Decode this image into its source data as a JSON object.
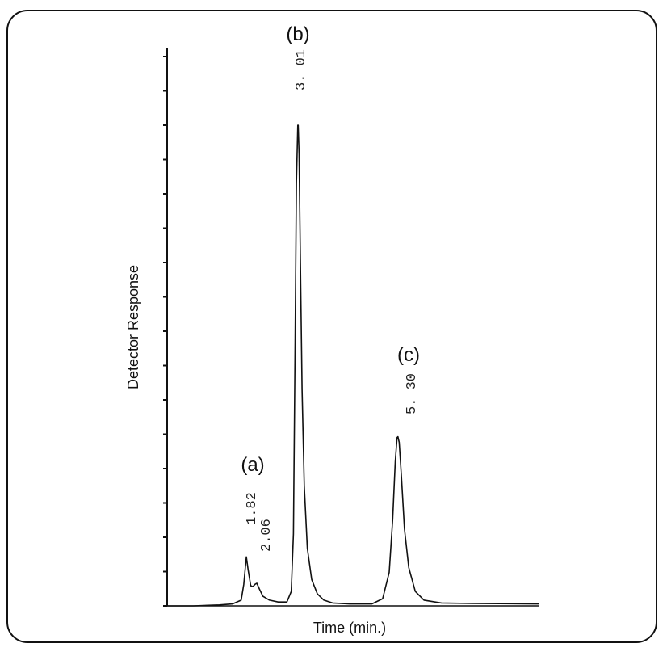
{
  "chart_data": {
    "type": "line",
    "xlabel": "Time (min.)",
    "ylabel": "Detector Response",
    "xlim": [
      0,
      8.55
    ],
    "ylim": [
      0,
      1.0
    ],
    "ytick_count": 17,
    "grid": false,
    "series": [
      {
        "x": [
          0.0,
          0.6,
          1.2,
          1.5,
          1.7,
          1.76,
          1.8,
          1.82,
          1.86,
          1.92,
          1.97,
          2.02,
          2.06,
          2.12,
          2.2,
          2.35,
          2.55,
          2.75,
          2.85,
          2.9,
          2.94,
          2.97,
          3.0,
          3.01,
          3.03,
          3.06,
          3.1,
          3.15,
          3.22,
          3.32,
          3.45,
          3.6,
          3.8,
          4.2,
          4.7,
          4.95,
          5.1,
          5.18,
          5.24,
          5.28,
          5.3,
          5.33,
          5.38,
          5.45,
          5.55,
          5.7,
          5.9,
          6.3,
          7.0,
          8.55
        ],
        "y": [
          0.0,
          0.0,
          0.002,
          0.004,
          0.012,
          0.045,
          0.085,
          0.102,
          0.075,
          0.042,
          0.04,
          0.045,
          0.047,
          0.035,
          0.02,
          0.012,
          0.008,
          0.008,
          0.03,
          0.15,
          0.55,
          0.88,
          1.0,
          1.0,
          0.94,
          0.72,
          0.45,
          0.25,
          0.12,
          0.055,
          0.025,
          0.012,
          0.006,
          0.004,
          0.004,
          0.015,
          0.07,
          0.18,
          0.3,
          0.35,
          0.352,
          0.34,
          0.27,
          0.16,
          0.08,
          0.03,
          0.012,
          0.006,
          0.005,
          0.004
        ]
      }
    ],
    "peaks": [
      {
        "label": "(a)",
        "retention_times": [
          "1.82",
          "2.06"
        ]
      },
      {
        "label": "(b)",
        "retention_times": [
          "3.01"
        ]
      },
      {
        "label": "(c)",
        "retention_times": [
          "5.30"
        ]
      }
    ]
  },
  "retention_labels": {
    "a1": "1.82",
    "a2": "2.06",
    "b": "3. 01",
    "c": "5. 30"
  }
}
